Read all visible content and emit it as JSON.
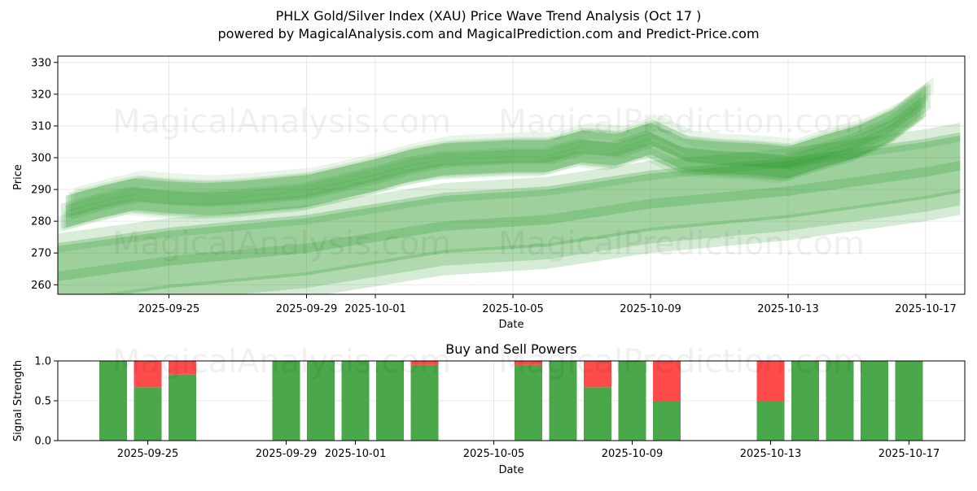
{
  "chart_data": [
    {
      "type": "area",
      "title_line1": "PHLX Gold/Silver Index (XAU) Price Wave Trend Analysis (Oct 17 )",
      "title_line2": "powered by MagicalAnalysis.com and MagicalPrediction.com and Predict-Price.com",
      "xlabel": "Date",
      "ylabel": "Price",
      "ylim": [
        257,
        332
      ],
      "yticks": [
        260,
        270,
        280,
        290,
        300,
        310,
        320,
        330
      ],
      "xlim": [
        "2025-09-21",
        "2025-10-18"
      ],
      "xticks": [
        "2025-09-25",
        "2025-09-29",
        "2025-10-01",
        "2025-10-05",
        "2025-10-09",
        "2025-10-13",
        "2025-10-17"
      ],
      "grid": true,
      "color": "#2e9a2e",
      "series": [
        {
          "name": "upper wave bands",
          "points": [
            [
              "2025-09-22",
              283
            ],
            [
              "2025-09-23",
              286
            ],
            [
              "2025-09-24",
              288.5
            ],
            [
              "2025-09-25",
              287.5
            ],
            [
              "2025-09-26",
              287
            ],
            [
              "2025-09-27",
              287.5
            ],
            [
              "2025-09-28",
              288.5
            ],
            [
              "2025-09-29",
              289.5
            ],
            [
              "2025-09-30",
              292
            ],
            [
              "2025-10-01",
              294.5
            ],
            [
              "2025-10-02",
              297.5
            ],
            [
              "2025-10-03",
              299.5
            ],
            [
              "2025-10-04",
              300
            ],
            [
              "2025-10-05",
              300.5
            ],
            [
              "2025-10-06",
              300.5
            ],
            [
              "2025-10-07",
              303.5
            ],
            [
              "2025-10-08",
              302.5
            ],
            [
              "2025-10-09",
              306
            ],
            [
              "2025-10-10",
              301
            ],
            [
              "2025-10-11",
              300
            ],
            [
              "2025-10-12",
              299.5
            ],
            [
              "2025-10-13",
              298.5
            ],
            [
              "2025-10-14",
              302
            ],
            [
              "2025-10-15",
              305
            ],
            [
              "2025-10-16",
              310
            ],
            [
              "2025-10-17",
              318
            ]
          ]
        },
        {
          "name": "lower wave bands",
          "points": [
            [
              "2025-09-21",
              262
            ],
            [
              "2025-09-25",
              268
            ],
            [
              "2025-09-29",
              272
            ],
            [
              "2025-10-03",
              279
            ],
            [
              "2025-10-06",
              281
            ],
            [
              "2025-10-09",
              286
            ],
            [
              "2025-10-13",
              290
            ],
            [
              "2025-10-17",
              296
            ],
            [
              "2025-10-18",
              298
            ]
          ]
        }
      ]
    },
    {
      "type": "bar",
      "title": "Buy and Sell Powers",
      "xlabel": "Date",
      "ylabel": "Signal Strength",
      "ylim": [
        0,
        1
      ],
      "yticks": [
        "0.0",
        "0.5",
        "1.0"
      ],
      "xticks": [
        "2025-09-25",
        "2025-09-29",
        "2025-10-01",
        "2025-10-05",
        "2025-10-09",
        "2025-10-13",
        "2025-10-17"
      ],
      "grid": true,
      "buy_color": "#4aa74a",
      "sell_color": "#ff4b4b",
      "bars": [
        {
          "date": "2025-09-24",
          "buy": 1.0,
          "sell": 0.0
        },
        {
          "date": "2025-09-25",
          "buy": 0.67,
          "sell": 0.33
        },
        {
          "date": "2025-09-26",
          "buy": 0.83,
          "sell": 0.17
        },
        {
          "date": "2025-09-29",
          "buy": 1.0,
          "sell": 0.0
        },
        {
          "date": "2025-09-30",
          "buy": 1.0,
          "sell": 0.0
        },
        {
          "date": "2025-10-01",
          "buy": 1.0,
          "sell": 0.0
        },
        {
          "date": "2025-10-02",
          "buy": 1.0,
          "sell": 0.0
        },
        {
          "date": "2025-10-03",
          "buy": 0.95,
          "sell": 0.05
        },
        {
          "date": "2025-10-06",
          "buy": 0.95,
          "sell": 0.05
        },
        {
          "date": "2025-10-07",
          "buy": 1.0,
          "sell": 0.0
        },
        {
          "date": "2025-10-08",
          "buy": 0.67,
          "sell": 0.33
        },
        {
          "date": "2025-10-09",
          "buy": 1.0,
          "sell": 0.0
        },
        {
          "date": "2025-10-10",
          "buy": 0.5,
          "sell": 0.5
        },
        {
          "date": "2025-10-13",
          "buy": 0.5,
          "sell": 0.5
        },
        {
          "date": "2025-10-14",
          "buy": 1.0,
          "sell": 0.0
        },
        {
          "date": "2025-10-15",
          "buy": 1.0,
          "sell": 0.0
        },
        {
          "date": "2025-10-16",
          "buy": 1.0,
          "sell": 0.0
        },
        {
          "date": "2025-10-17",
          "buy": 1.0,
          "sell": 0.0
        }
      ]
    }
  ],
  "watermarks": [
    "MagicalAnalysis.com",
    "MagicalPrediction.com"
  ]
}
